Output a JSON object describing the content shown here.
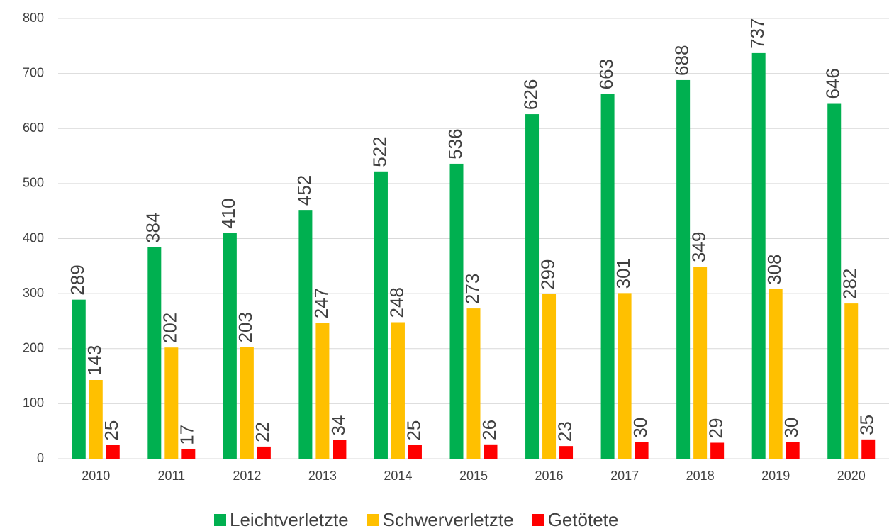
{
  "chart_data": {
    "type": "bar",
    "categories": [
      "2010",
      "2011",
      "2012",
      "2013",
      "2014",
      "2015",
      "2016",
      "2017",
      "2018",
      "2019",
      "2020"
    ],
    "series": [
      {
        "name": "Leichtverletzte",
        "color": "#00b050",
        "values": [
          289,
          384,
          410,
          452,
          522,
          536,
          626,
          663,
          688,
          737,
          646
        ]
      },
      {
        "name": "Schwerverletzte",
        "color": "#ffc000",
        "values": [
          143,
          202,
          203,
          247,
          248,
          273,
          299,
          301,
          349,
          308,
          282
        ]
      },
      {
        "name": "Getötete",
        "color": "#ff0000",
        "values": [
          25,
          17,
          22,
          34,
          25,
          26,
          23,
          30,
          29,
          30,
          35
        ]
      }
    ],
    "ylim": [
      0,
      800
    ],
    "yticks": [
      0,
      100,
      200,
      300,
      400,
      500,
      600,
      700,
      800
    ],
    "grid": true,
    "legend": "bottom"
  }
}
